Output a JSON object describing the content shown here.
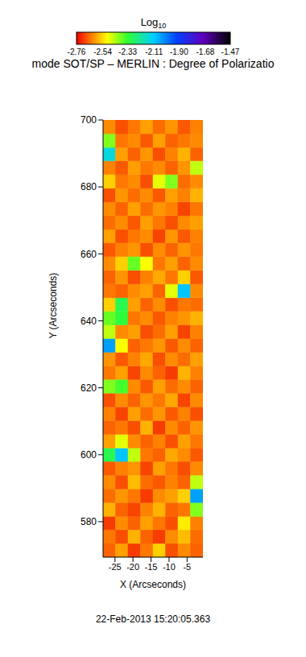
{
  "chart_data": {
    "type": "heatmap",
    "title": "mode SOT/SP – MERLIN : Degree of Polarizatio",
    "x_label": "X (Arcseconds)",
    "y_label": "Y (Arcseconds)",
    "annotations": [
      "22-Feb-2013 15:20:05.363"
    ],
    "xlim": [
      -28.3,
      -0.6
    ],
    "xticks": [
      -25,
      -20,
      -15,
      -10,
      -5
    ],
    "ylim": [
      569.4,
      700
    ],
    "yticks": [
      580,
      600,
      620,
      640,
      660,
      680,
      700
    ],
    "x_edges": [
      -28.3,
      -24.84,
      -21.38,
      -17.91,
      -14.45,
      -10.99,
      -7.53,
      -4.06,
      -0.6
    ],
    "y_edges": [
      569.4,
      573.5,
      577.6,
      581.6,
      585.7,
      589.8,
      593.9,
      598.0,
      602.0,
      606.1,
      610.2,
      614.3,
      618.4,
      622.5,
      626.5,
      630.6,
      634.7,
      638.8,
      642.9,
      646.9,
      651.0,
      655.1,
      659.2,
      663.3,
      667.3,
      671.4,
      675.5,
      679.6,
      683.7,
      687.8,
      691.8,
      695.9,
      700.0
    ],
    "cells": [
      [
        -2.66,
        -2.6,
        -2.7,
        -2.64,
        -2.55,
        -2.68,
        -2.62,
        -2.66
      ],
      [
        -2.64,
        -2.68,
        -2.58,
        -2.66,
        -2.7,
        -2.62,
        -2.57,
        -2.65
      ],
      [
        -2.7,
        -2.62,
        -2.66,
        -2.6,
        -2.64,
        -2.68,
        -2.52,
        -2.63
      ],
      [
        -2.58,
        -2.66,
        -2.69,
        -2.63,
        -2.58,
        -2.66,
        -2.64,
        -2.4
      ],
      [
        -2.65,
        -2.61,
        -2.64,
        -2.7,
        -2.62,
        -2.6,
        -2.55,
        -2.05
      ],
      [
        -2.62,
        -2.68,
        -2.57,
        -2.65,
        -2.67,
        -2.63,
        -2.66,
        -2.45
      ],
      [
        -2.67,
        -2.63,
        -2.61,
        -2.69,
        -2.6,
        -2.64,
        -2.68,
        -2.62
      ],
      [
        -2.3,
        -2.1,
        -2.45,
        -2.64,
        -2.66,
        -2.59,
        -2.62,
        -2.67
      ],
      [
        -2.6,
        -2.48,
        -2.62,
        -2.66,
        -2.63,
        -2.68,
        -2.6,
        -2.64
      ],
      [
        -2.66,
        -2.64,
        -2.68,
        -2.58,
        -2.7,
        -2.62,
        -2.66,
        -2.61
      ],
      [
        -2.63,
        -2.69,
        -2.6,
        -2.65,
        -2.61,
        -2.67,
        -2.63,
        -2.68
      ],
      [
        -2.68,
        -2.62,
        -2.66,
        -2.61,
        -2.64,
        -2.59,
        -2.69,
        -2.62
      ],
      [
        -2.4,
        -2.35,
        -2.62,
        -2.67,
        -2.6,
        -2.65,
        -2.62,
        -2.66
      ],
      [
        -2.64,
        -2.6,
        -2.69,
        -2.62,
        -2.66,
        -2.7,
        -2.58,
        -2.63
      ],
      [
        -2.61,
        -2.67,
        -2.63,
        -2.59,
        -2.68,
        -2.62,
        -2.65,
        -2.6
      ],
      [
        -2.05,
        -2.5,
        -2.66,
        -2.64,
        -2.61,
        -2.67,
        -2.62,
        -2.66
      ],
      [
        -2.45,
        -2.62,
        -2.6,
        -2.68,
        -2.65,
        -2.6,
        -2.69,
        -2.63
      ],
      [
        -2.38,
        -2.32,
        -2.64,
        -2.62,
        -2.67,
        -2.63,
        -2.61,
        -2.58
      ],
      [
        -2.55,
        -2.3,
        -2.6,
        -2.66,
        -2.62,
        -2.68,
        -2.64,
        -2.65
      ],
      [
        -2.64,
        -2.66,
        -2.62,
        -2.6,
        -2.66,
        -2.48,
        -2.1,
        -2.62
      ],
      [
        -2.66,
        -2.61,
        -2.68,
        -2.63,
        -2.59,
        -2.64,
        -2.55,
        -2.67
      ],
      [
        -2.62,
        -2.55,
        -2.38,
        -2.5,
        -2.64,
        -2.6,
        -2.66,
        -2.62
      ],
      [
        -2.67,
        -2.63,
        -2.61,
        -2.68,
        -2.62,
        -2.66,
        -2.61,
        -2.64
      ],
      [
        -2.6,
        -2.68,
        -2.64,
        -2.62,
        -2.69,
        -2.61,
        -2.67,
        -2.63
      ],
      [
        -2.65,
        -2.62,
        -2.67,
        -2.6,
        -2.64,
        -2.68,
        -2.62,
        -2.6
      ],
      [
        -2.62,
        -2.66,
        -2.6,
        -2.65,
        -2.61,
        -2.63,
        -2.69,
        -2.64
      ],
      [
        -2.68,
        -2.61,
        -2.65,
        -2.62,
        -2.67,
        -2.6,
        -2.63,
        -2.58
      ],
      [
        -2.55,
        -2.64,
        -2.62,
        -2.68,
        -2.48,
        -2.4,
        -2.65,
        -2.62
      ],
      [
        -2.63,
        -2.67,
        -2.6,
        -2.64,
        -2.62,
        -2.66,
        -2.61,
        -2.45
      ],
      [
        -2.15,
        -2.6,
        -2.66,
        -2.61,
        -2.68,
        -2.63,
        -2.58,
        -2.66
      ],
      [
        -2.4,
        -2.64,
        -2.62,
        -2.67,
        -2.6,
        -2.66,
        -2.64,
        -2.62
      ],
      [
        -2.62,
        -2.68,
        -2.64,
        -2.6,
        -2.65,
        -2.61,
        -2.67,
        -2.63
      ]
    ],
    "colorbar": {
      "label": "Log10",
      "range": [
        -2.76,
        -1.47
      ],
      "ticks": [
        -2.76,
        -2.54,
        -2.33,
        -2.11,
        {
          "value": -1.9,
          "label": "-1.90"
        },
        -1.68,
        -1.47
      ]
    }
  }
}
